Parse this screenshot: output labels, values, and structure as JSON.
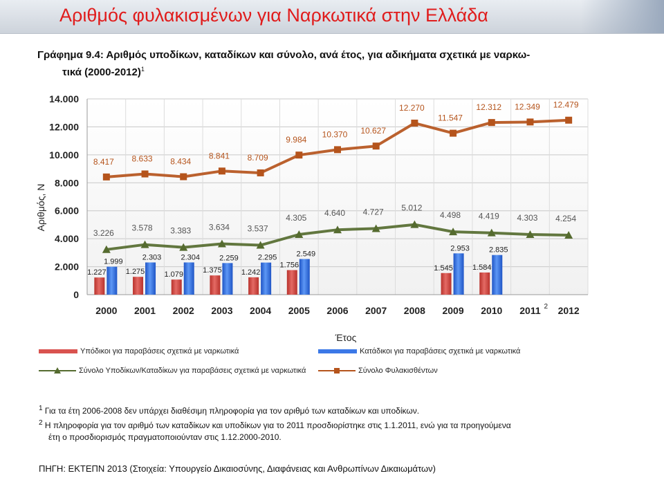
{
  "slide": {
    "title": "Αριθμός φυλακισμένων για Ναρκωτικά στην Ελλάδα"
  },
  "figure": {
    "title_line1": "Γράφημα 9.4: Αριθμός υποδίκων, καταδίκων και σύνολο, ανά έτος, για αδικήματα σχετικά με ναρκω-",
    "title_line2": "τικά (2000-2012)",
    "title_sup": "1"
  },
  "chart_data": {
    "type": "bar",
    "xlabel": "Έτος",
    "ylabel": "Αριθμός, Ν",
    "ylim": [
      0,
      14000
    ],
    "yticks": [
      "0",
      "2.000",
      "4.000",
      "6.000",
      "8.000",
      "10.000",
      "12.000",
      "14.000"
    ],
    "ytick_values": [
      0,
      2000,
      4000,
      6000,
      8000,
      10000,
      12000,
      14000
    ],
    "categories": [
      "2000",
      "2001",
      "2002",
      "2003",
      "2004",
      "2005",
      "2006",
      "2007",
      "2008",
      "2009",
      "2010",
      "2011",
      "2012"
    ],
    "category_sup": {
      "2011": "2"
    },
    "grid": true,
    "legend_position": "bottom",
    "series": [
      {
        "name": "Υπόδικοι για παραβάσεις σχετικά με ναρκωτικά",
        "kind": "bar",
        "color": "#d9534f",
        "values": [
          1227,
          1275,
          1079,
          1375,
          1242,
          1756,
          null,
          null,
          null,
          1545,
          1584,
          null,
          null
        ],
        "labels": [
          "1.227",
          "1.275",
          "1.079",
          "1.375",
          "1.242",
          "1.756",
          "",
          "",
          "",
          "1.545",
          "1.584",
          "",
          ""
        ]
      },
      {
        "name": "Κατάδικοι για παραβάσεις σχετικά με ναρκωτικά",
        "kind": "bar",
        "color": "#3b78e7",
        "values": [
          1999,
          2303,
          2304,
          2259,
          2295,
          2549,
          null,
          null,
          null,
          2953,
          2835,
          null,
          null
        ],
        "labels": [
          "1.999",
          "2.303",
          "2.304",
          "2.259",
          "2.295",
          "2.549",
          "",
          "",
          "",
          "2.953",
          "2.835",
          "",
          ""
        ]
      },
      {
        "name": "Σύνολο Υποδίκων/Καταδίκων για παραβάσεις σχετικά με ναρκωτικά",
        "kind": "line",
        "marker": "triangle",
        "color": "#556b2f",
        "values": [
          3226,
          3578,
          3383,
          3634,
          3537,
          4305,
          4640,
          4727,
          5012,
          4498,
          4419,
          4303,
          4254
        ],
        "labels": [
          "3.226",
          "3.578",
          "3.383",
          "3.634",
          "3.537",
          "4.305",
          "4.640",
          "4.727",
          "5.012",
          "4.498",
          "4.419",
          "4.303",
          "4.254"
        ]
      },
      {
        "name": "Σύνολο Φυλακισθέντων",
        "kind": "line",
        "marker": "square",
        "color": "#b5541c",
        "values": [
          8417,
          8633,
          8434,
          8841,
          8709,
          9984,
          10370,
          10627,
          12270,
          11547,
          12312,
          12349,
          12479
        ],
        "labels": [
          "8.417",
          "8.633",
          "8.434",
          "8.841",
          "8.709",
          "9.984",
          "10.370",
          "10.627",
          "12.270",
          "11.547",
          "12.312",
          "12.349",
          "12.479"
        ]
      }
    ]
  },
  "footnotes": {
    "fn1_marker": "1",
    "fn1": "Για τα έτη 2006-2008 δεν υπάρχει διαθέσιμη πληροφορία για τον αριθμό των καταδίκων και υποδίκων.",
    "fn2_marker": "2",
    "fn2_line1": "Η πληροφορία για τον αριθμό των καταδίκων και υποδίκων για το 2011 προσδιορίστηκε στις 1.1.2011, ενώ για τα προηγούμενα",
    "fn2_line2": "έτη ο προσδιορισμός πραγματοποιούνταν στις 1.12.2000-2010."
  },
  "source": "ΠΗΓΗ: ΕΚΤΕΠΝ 2013 (Στοιχεία: Υπουργείο Δικαιοσύνης, Διαφάνειας και Ανθρωπίνων Δικαιωμάτων)"
}
